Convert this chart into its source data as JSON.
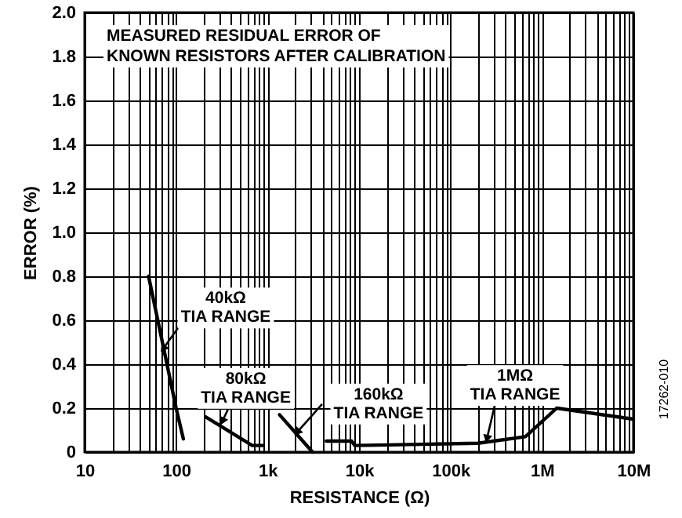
{
  "chart_data": {
    "type": "line",
    "title": "MEASURED RESIDUAL ERROR OF KNOWN RESISTORS AFTER CALIBRATION",
    "xlabel": "RESISTANCE (Ω)",
    "ylabel": "ERROR (%)",
    "log": "x",
    "grid": true,
    "marker": "none",
    "line_style": "solid",
    "xlim": [
      10,
      10000000
    ],
    "ylim": [
      0,
      2
    ],
    "xticks": [
      10,
      {
        "value": 20,
        "label": null
      },
      {
        "value": 30,
        "label": null
      },
      {
        "value": 40,
        "label": null
      },
      {
        "value": 50,
        "label": null
      },
      {
        "value": 60,
        "label": null
      },
      {
        "value": 70,
        "label": null
      },
      {
        "value": 80,
        "label": null
      },
      {
        "value": 90,
        "label": null
      },
      100,
      {
        "value": 200,
        "label": null
      },
      {
        "value": 300,
        "label": null
      },
      {
        "value": 400,
        "label": null
      },
      {
        "value": 500,
        "label": null
      },
      {
        "value": 600,
        "label": null
      },
      {
        "value": 700,
        "label": null
      },
      {
        "value": 800,
        "label": null
      },
      {
        "value": 900,
        "label": null
      },
      {
        "value": 1000,
        "label": "1k"
      },
      {
        "value": 2000,
        "label": null
      },
      {
        "value": 3000,
        "label": null
      },
      {
        "value": 4000,
        "label": null
      },
      {
        "value": 5000,
        "label": null
      },
      {
        "value": 6000,
        "label": null
      },
      {
        "value": 7000,
        "label": null
      },
      {
        "value": 8000,
        "label": null
      },
      {
        "value": 9000,
        "label": null
      },
      {
        "value": 10000,
        "label": "10k"
      },
      {
        "value": 20000,
        "label": null
      },
      {
        "value": 30000,
        "label": null
      },
      {
        "value": 40000,
        "label": null
      },
      {
        "value": 50000,
        "label": null
      },
      {
        "value": 60000,
        "label": null
      },
      {
        "value": 70000,
        "label": null
      },
      {
        "value": 80000,
        "label": null
      },
      {
        "value": 90000,
        "label": null
      },
      {
        "value": 100000,
        "label": "100k"
      },
      {
        "value": 200000,
        "label": null
      },
      {
        "value": 300000,
        "label": null
      },
      {
        "value": 400000,
        "label": null
      },
      {
        "value": 500000,
        "label": null
      },
      {
        "value": 600000,
        "label": null
      },
      {
        "value": 700000,
        "label": null
      },
      {
        "value": 800000,
        "label": null
      },
      {
        "value": 900000,
        "label": null
      },
      {
        "value": 1000000,
        "label": "1M"
      },
      {
        "value": 2000000,
        "label": null
      },
      {
        "value": 3000000,
        "label": null
      },
      {
        "value": 4000000,
        "label": null
      },
      {
        "value": 5000000,
        "label": null
      },
      {
        "value": 6000000,
        "label": null
      },
      {
        "value": 7000000,
        "label": null
      },
      {
        "value": 8000000,
        "label": null
      },
      {
        "value": 9000000,
        "label": null
      },
      {
        "value": 10000000,
        "label": "10M"
      }
    ],
    "yticks": [
      0,
      0.2,
      0.4,
      0.6,
      0.8,
      {
        "value": 1,
        "label": "1.0"
      },
      1.2,
      1.4,
      1.6,
      1.8,
      {
        "value": 2,
        "label": "2.0"
      }
    ],
    "series": [
      {
        "color": "#000000",
        "x": [
          50,
          75,
          100,
          120
        ],
        "values": [
          0.8,
          0.45,
          0.2,
          0.06
        ]
      },
      {
        "color": "#000000",
        "x": [
          210,
          680,
          900
        ],
        "values": [
          0.16,
          0.03,
          0.03
        ]
      },
      {
        "color": "#000000",
        "x": [
          1350,
          3100
        ],
        "values": [
          0.17,
          0
        ]
      },
      {
        "color": "#000000",
        "x": [
          4400,
          8300,
          9000,
          200000,
          660000,
          1450000,
          10000000
        ],
        "values": [
          0.05,
          0.05,
          0.03,
          0.04,
          0.07,
          0.2,
          0.15
        ]
      }
    ],
    "annotations": [
      {
        "text": "40kΩ\nTIA RANGE",
        "x": 72,
        "y": 0.47
      },
      {
        "text": "80kΩ\nTIA RANGE",
        "x": 320,
        "y": 0.14
      },
      {
        "text": "160kΩ\nTIA RANGE",
        "x": 2100,
        "y": 0.09
      },
      {
        "text": "1MΩ\nTIA RANGE",
        "x": 250000,
        "y": 0.06
      },
      "17262-010"
    ]
  }
}
